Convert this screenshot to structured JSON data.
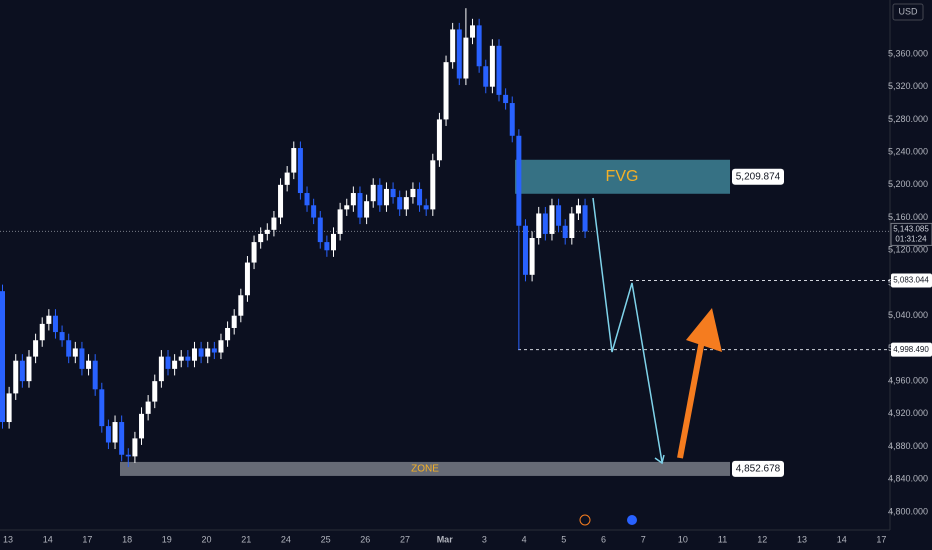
{
  "chart_data": {
    "type": "candlestick",
    "currency": "USD",
    "open": [
      5070,
      4910,
      4945,
      4985,
      4960,
      4990,
      5010,
      5030,
      5040,
      5020,
      5010,
      4990,
      5000,
      4975,
      4985,
      4950,
      4905,
      4885,
      4910,
      4870,
      4868,
      4890,
      4920,
      4935,
      4960,
      4990,
      4975,
      4985,
      4990,
      4985,
      5000,
      4990,
      5000,
      4995,
      5010,
      5025,
      5040,
      5065,
      5105,
      5130,
      5140,
      5145,
      5160,
      5200,
      5215,
      5245,
      5190,
      5175,
      5160,
      5130,
      5120,
      5140,
      5170,
      5175,
      5190,
      5160,
      5180,
      5200,
      5175,
      5195,
      5185,
      5170,
      5185,
      5195,
      5175,
      5170,
      5230,
      5280,
      5350,
      5390,
      5330,
      5380,
      5395,
      5345,
      5320,
      5370,
      5310,
      5300,
      5260,
      5150,
      5090,
      5135,
      5165,
      5140,
      5175,
      5150,
      5135,
      5165,
      5175
    ],
    "high": [
      5078,
      4953,
      4993,
      4993,
      4998,
      5018,
      5038,
      5048,
      5048,
      5028,
      5018,
      5008,
      5008,
      4993,
      4993,
      4958,
      4913,
      4918,
      4918,
      4878,
      4898,
      4928,
      4943,
      4968,
      4998,
      4998,
      4993,
      4998,
      4998,
      5008,
      5008,
      5008,
      5008,
      5018,
      5033,
      5048,
      5073,
      5113,
      5138,
      5148,
      5153,
      5168,
      5208,
      5223,
      5253,
      5253,
      5198,
      5183,
      5168,
      5138,
      5148,
      5178,
      5183,
      5198,
      5198,
      5188,
      5208,
      5208,
      5203,
      5203,
      5193,
      5193,
      5203,
      5203,
      5183,
      5238,
      5288,
      5358,
      5398,
      5398,
      5416,
      5403,
      5403,
      5353,
      5378,
      5378,
      5318,
      5308,
      5268,
      5158,
      5143,
      5173,
      5173,
      5183,
      5183,
      5158,
      5173,
      5183,
      5183
    ],
    "low": [
      4902,
      4902,
      4937,
      4952,
      4952,
      4982,
      5002,
      5022,
      5012,
      5002,
      4982,
      4982,
      4967,
      4967,
      4942,
      4897,
      4877,
      4877,
      4862,
      4855,
      4860,
      4882,
      4912,
      4927,
      4952,
      4967,
      4967,
      4977,
      4977,
      4977,
      4982,
      4982,
      4987,
      4987,
      5002,
      5017,
      5032,
      5057,
      5097,
      5122,
      5132,
      5137,
      5152,
      5192,
      5207,
      5182,
      5167,
      5152,
      5122,
      5112,
      5112,
      5132,
      5162,
      5167,
      5152,
      5152,
      5172,
      5167,
      5167,
      5177,
      5162,
      5162,
      5177,
      5167,
      5162,
      5162,
      5222,
      5272,
      5342,
      5322,
      5322,
      5372,
      5337,
      5312,
      5312,
      5302,
      5292,
      5252,
      4998,
      5082,
      5082,
      5127,
      5132,
      5132,
      5142,
      5127,
      5127,
      5157,
      5135
    ],
    "close": [
      4910,
      4945,
      4985,
      4960,
      4990,
      5010,
      5030,
      5040,
      5020,
      5010,
      4990,
      5000,
      4975,
      4985,
      4950,
      4905,
      4885,
      4910,
      4870,
      4868,
      4890,
      4920,
      4935,
      4960,
      4990,
      4975,
      4985,
      4990,
      4985,
      5000,
      4990,
      5000,
      4995,
      5010,
      5025,
      5040,
      5065,
      5105,
      5130,
      5140,
      5145,
      5160,
      5200,
      5215,
      5245,
      5190,
      5175,
      5160,
      5130,
      5120,
      5140,
      5170,
      5175,
      5190,
      5160,
      5180,
      5200,
      5175,
      5195,
      5185,
      5170,
      5185,
      5195,
      5175,
      5170,
      5230,
      5280,
      5350,
      5390,
      5330,
      5380,
      5395,
      5345,
      5320,
      5370,
      5310,
      5300,
      5260,
      5150,
      5090,
      5135,
      5165,
      5140,
      5175,
      5150,
      5135,
      5165,
      5175,
      5143
    ],
    "ylim": [
      4778,
      5426
    ],
    "yticks": [
      {
        "value": 4800,
        "label": "4,800.000"
      },
      {
        "value": 4840,
        "label": "4,840.000"
      },
      {
        "value": 4880,
        "label": "4,880.000"
      },
      {
        "value": 4920,
        "label": "4,920.000"
      },
      {
        "value": 4960,
        "label": "4,960.000"
      },
      {
        "value": 5000,
        "label": "5,000.000"
      },
      {
        "value": 5040,
        "label": "5,040.000"
      },
      {
        "value": 5080,
        "label": "5,080.000"
      },
      {
        "value": 5120,
        "label": "5,120.000"
      },
      {
        "value": 5160,
        "label": "5,160.000"
      },
      {
        "value": 5200,
        "label": "5,200.000"
      },
      {
        "value": 5240,
        "label": "5,240.000"
      },
      {
        "value": 5280,
        "label": "5,280.000"
      },
      {
        "value": 5320,
        "label": "5,320.000"
      },
      {
        "value": 5360,
        "label": "5,360.000"
      }
    ],
    "time_labels": [
      "13",
      "14",
      "17",
      "18",
      "19",
      "20",
      "21",
      "24",
      "25",
      "26",
      "27",
      "Mar",
      "3",
      "4",
      "5",
      "6",
      "7",
      "10",
      "11",
      "12",
      "13",
      "14",
      "17"
    ],
    "last_price": {
      "value": 5143.085,
      "label": "5,143.085"
    },
    "countdown": "01:31:24",
    "levels": [
      {
        "value": 5083.044,
        "label": "5,083.044"
      },
      {
        "value": 4998.49,
        "label": "4,998.490"
      }
    ],
    "fvg": {
      "text": "FVG",
      "value": 5209.874,
      "label": "5,209.874"
    },
    "zone": {
      "text": "ZONE",
      "value": 4852.678,
      "label": "4,852.678"
    }
  }
}
